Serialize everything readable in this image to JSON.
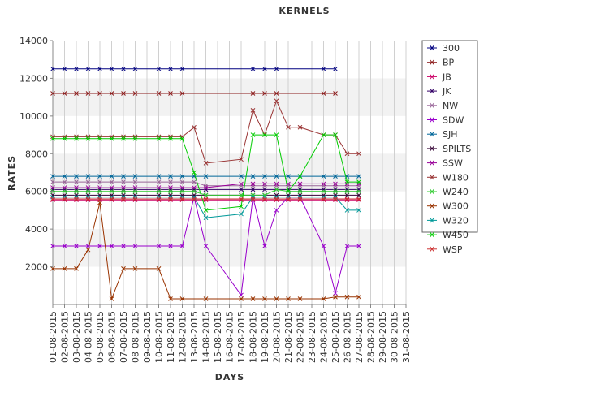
{
  "chart_data": {
    "type": "line",
    "title": "KERNELS",
    "xlabel": "DAYS",
    "ylabel": "RATES",
    "ylim": [
      0,
      14000
    ],
    "yticks": [
      2000,
      4000,
      6000,
      8000,
      10000,
      12000,
      14000
    ],
    "grid": "alternating horizontal bands",
    "legend_position": "right",
    "categories": [
      "01-08-2015",
      "02-08-2015",
      "03-08-2015",
      "04-08-2015",
      "05-08-2015",
      "06-08-2015",
      "07-08-2015",
      "08-08-2015",
      "09-08-2015",
      "10-08-2015",
      "11-08-2015",
      "12-08-2015",
      "13-08-2015",
      "14-08-2015",
      "15-08-2015",
      "16-08-2015",
      "17-08-2015",
      "18-08-2015",
      "19-08-2015",
      "20-08-2015",
      "21-08-2015",
      "22-08-2015",
      "23-08-2015",
      "24-08-2015",
      "25-08-2015",
      "26-08-2015",
      "27-08-2015",
      "28-08-2015",
      "29-08-2015",
      "30-08-2015",
      "31-08-2015"
    ],
    "series": [
      {
        "name": "300",
        "color": "#000080",
        "values": [
          12500,
          12500,
          12500,
          12500,
          12500,
          12500,
          12500,
          12500,
          null,
          12500,
          12500,
          12500,
          null,
          null,
          null,
          null,
          null,
          12500,
          12500,
          12500,
          null,
          null,
          null,
          12500,
          12500,
          null,
          null,
          null,
          null,
          null,
          null
        ]
      },
      {
        "name": "BP",
        "color": "#8b1a1a",
        "values": [
          11200,
          11200,
          11200,
          11200,
          11200,
          11200,
          11200,
          11200,
          null,
          11200,
          11200,
          11200,
          null,
          null,
          null,
          null,
          null,
          11200,
          11200,
          11200,
          null,
          null,
          null,
          11200,
          11200,
          null,
          null,
          null,
          null,
          null,
          null
        ]
      },
      {
        "name": "JB",
        "color": "#cc0066",
        "values": [
          5550,
          5550,
          5550,
          5550,
          5550,
          5550,
          5550,
          5550,
          null,
          5550,
          5550,
          5550,
          5550,
          5550,
          null,
          null,
          5550,
          5550,
          5550,
          5550,
          5550,
          5550,
          null,
          5550,
          5550,
          5550,
          5550,
          null,
          null,
          null,
          null
        ]
      },
      {
        "name": "JK",
        "color": "#330066",
        "values": [
          6100,
          6100,
          6100,
          6100,
          6100,
          6100,
          6100,
          6100,
          null,
          6100,
          6100,
          6100,
          6100,
          6100,
          null,
          null,
          6100,
          6100,
          6100,
          6100,
          6100,
          6100,
          null,
          6100,
          6100,
          6100,
          6100,
          null,
          null,
          null,
          null
        ]
      },
      {
        "name": "NW",
        "color": "#996699",
        "values": [
          6500,
          6500,
          6500,
          6500,
          6500,
          6500,
          6500,
          6500,
          null,
          6500,
          6500,
          6500,
          6500,
          6300,
          null,
          null,
          6300,
          6300,
          6300,
          6300,
          6300,
          6300,
          null,
          6300,
          6300,
          6300,
          6300,
          null,
          null,
          null,
          null
        ]
      },
      {
        "name": "SDW",
        "color": "#9900cc",
        "values": [
          3100,
          3100,
          3100,
          3100,
          3100,
          3100,
          3100,
          3100,
          null,
          3100,
          3100,
          3100,
          5700,
          3100,
          null,
          null,
          500,
          5700,
          3100,
          5000,
          5700,
          5700,
          null,
          3100,
          600,
          3100,
          3100,
          null,
          null,
          null,
          null
        ]
      },
      {
        "name": "SJH",
        "color": "#006699",
        "values": [
          6800,
          6800,
          6800,
          6800,
          6800,
          6800,
          6800,
          6800,
          null,
          6800,
          6800,
          6800,
          6800,
          6800,
          null,
          null,
          6800,
          6800,
          6800,
          6800,
          6800,
          6800,
          null,
          6800,
          6800,
          6800,
          6800,
          null,
          null,
          null,
          null
        ]
      },
      {
        "name": "SPILTS",
        "color": "#330033",
        "values": [
          5800,
          5800,
          5800,
          5800,
          5800,
          5800,
          5800,
          5800,
          null,
          5800,
          5800,
          5800,
          5800,
          5800,
          null,
          null,
          5800,
          5800,
          5800,
          5800,
          5800,
          5800,
          null,
          5800,
          5800,
          5800,
          5800,
          null,
          null,
          null,
          null
        ]
      },
      {
        "name": "SSW",
        "color": "#990099",
        "values": [
          6200,
          6200,
          6200,
          6200,
          6200,
          6200,
          6200,
          6200,
          null,
          6200,
          6200,
          6200,
          6200,
          6200,
          null,
          null,
          6400,
          6400,
          6400,
          6400,
          6400,
          6400,
          null,
          6400,
          6400,
          6400,
          6400,
          null,
          null,
          null,
          null
        ]
      },
      {
        "name": "W180",
        "color": "#993333",
        "values": [
          8900,
          8900,
          8900,
          8900,
          8900,
          8900,
          8900,
          8900,
          null,
          8900,
          8900,
          8900,
          9400,
          7500,
          null,
          null,
          7700,
          10300,
          9000,
          10800,
          9400,
          9400,
          null,
          9000,
          9000,
          8000,
          8000,
          null,
          null,
          null,
          null
        ]
      },
      {
        "name": "W240",
        "color": "#33cc33",
        "values": [
          6000,
          6000,
          6000,
          6000,
          6000,
          6000,
          6000,
          6000,
          null,
          6000,
          6000,
          6000,
          6000,
          5800,
          null,
          null,
          5800,
          5800,
          5800,
          6100,
          6000,
          6000,
          null,
          6000,
          6000,
          6000,
          6000,
          null,
          null,
          null,
          null
        ]
      },
      {
        "name": "W300",
        "color": "#993300",
        "values": [
          1900,
          1900,
          1900,
          2900,
          5400,
          300,
          1900,
          1900,
          null,
          1900,
          300,
          300,
          null,
          300,
          null,
          null,
          300,
          300,
          300,
          300,
          300,
          300,
          null,
          300,
          400,
          400,
          400,
          null,
          null,
          null,
          null
        ]
      },
      {
        "name": "W320",
        "color": "#009999",
        "values": [
          5700,
          5700,
          5700,
          5700,
          5700,
          5700,
          5700,
          5700,
          null,
          5700,
          5700,
          5700,
          5700,
          4600,
          null,
          null,
          4800,
          5700,
          5700,
          5700,
          5700,
          5700,
          null,
          5700,
          5700,
          5000,
          5000,
          null,
          null,
          null,
          null
        ]
      },
      {
        "name": "W450",
        "color": "#00cc00",
        "values": [
          8800,
          8800,
          8800,
          8800,
          8800,
          8800,
          8800,
          8800,
          null,
          8800,
          8800,
          8800,
          7000,
          5000,
          null,
          null,
          5200,
          9000,
          9000,
          9000,
          6000,
          6800,
          null,
          9000,
          9000,
          6500,
          6500,
          null,
          null,
          null,
          null
        ]
      },
      {
        "name": "WSP",
        "color": "#cc3333",
        "values": [
          5600,
          5600,
          5600,
          5600,
          5600,
          5600,
          5600,
          5600,
          null,
          5600,
          5600,
          5600,
          5600,
          5600,
          null,
          null,
          5600,
          5600,
          5600,
          5600,
          5600,
          5600,
          null,
          5600,
          5600,
          5600,
          5600,
          null,
          null,
          null,
          null
        ]
      }
    ]
  }
}
